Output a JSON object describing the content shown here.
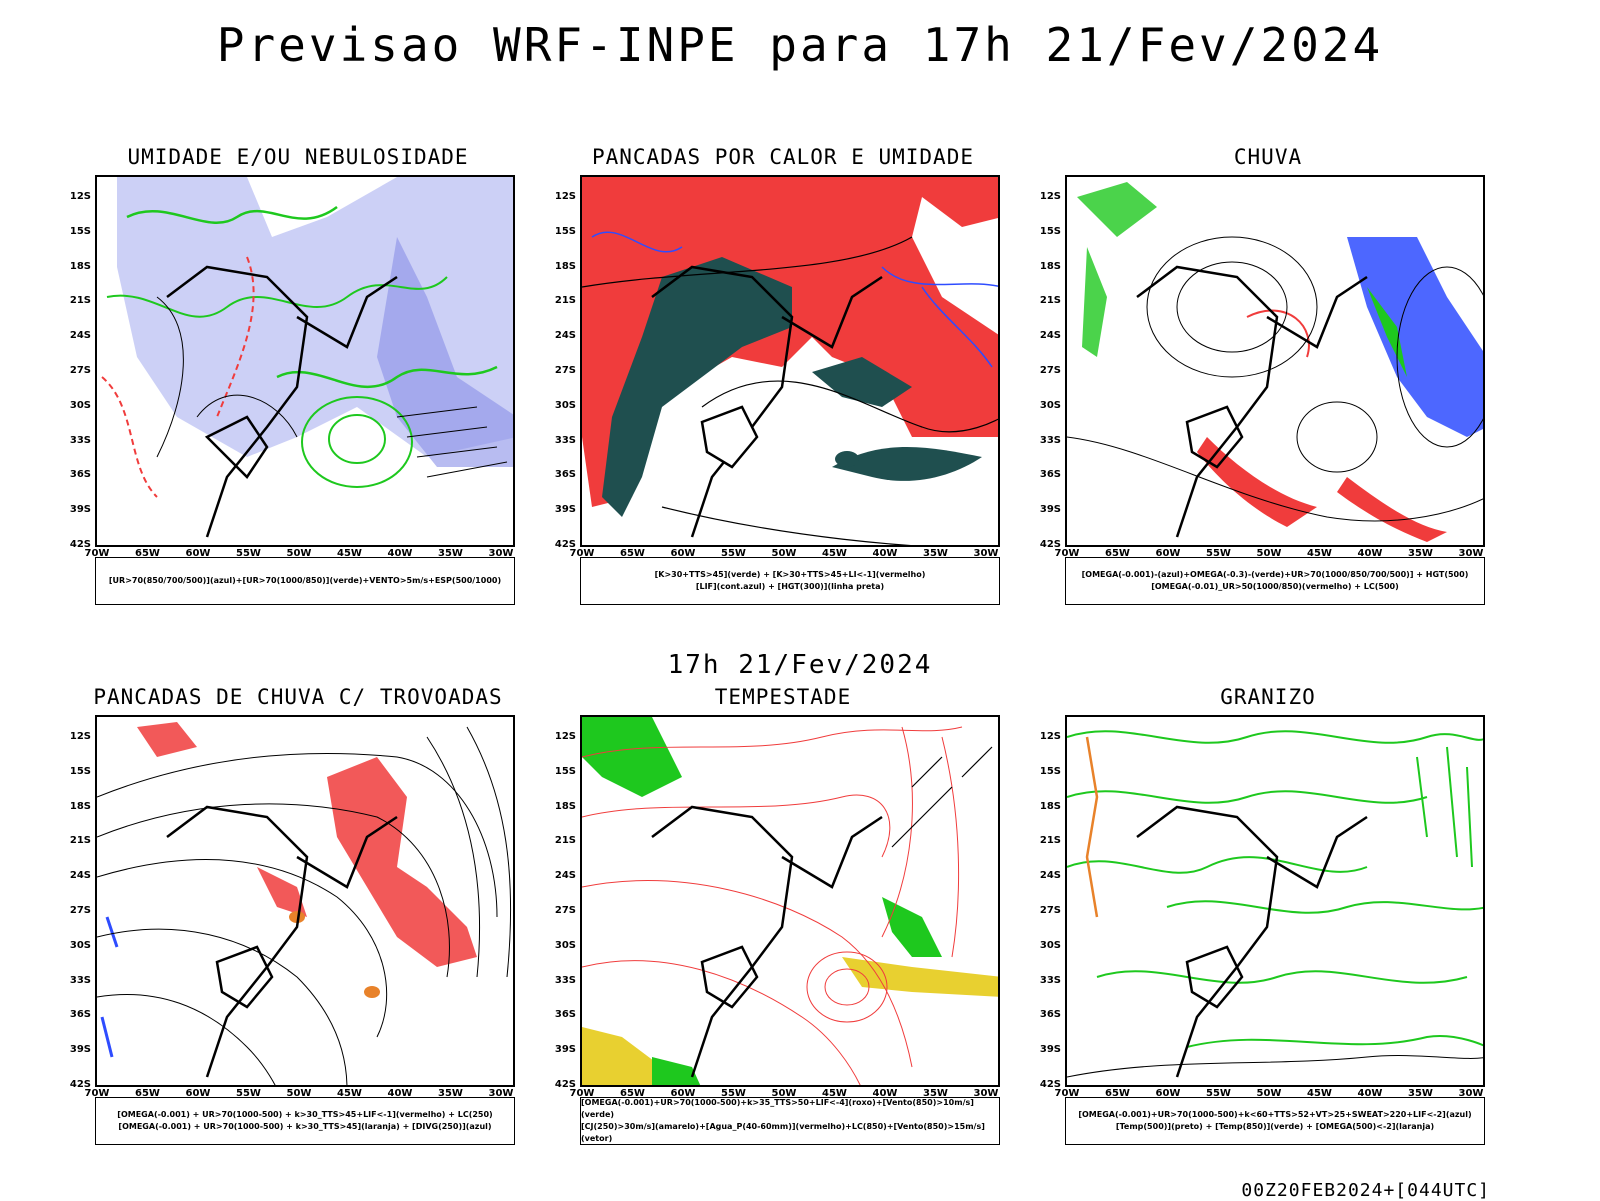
{
  "title": "Previsao WRF-INPE  para 17h 21/Fev/2024",
  "mid_date": "17h 21/Fev/2024",
  "run_info": "00Z20FEB2024+[044UTC]",
  "lat_labels": [
    "12S",
    "15S",
    "18S",
    "21S",
    "24S",
    "27S",
    "30S",
    "33S",
    "36S",
    "39S",
    "42S"
  ],
  "lon_labels": [
    "70W",
    "65W",
    "60W",
    "55W",
    "50W",
    "45W",
    "40W",
    "35W",
    "30W"
  ],
  "colors": {
    "blue": "#2e4cff",
    "green": "#1ec81e",
    "red": "#f03c3c",
    "lavender": "#aab0f0",
    "teal": "#1f4f4f",
    "yellow": "#e8d030",
    "orange": "#e8822a"
  },
  "panels": [
    {
      "title": "UMIDADE E/OU NEBULOSIDADE",
      "legend": [
        "[UR>70(850/700/500)](azul)+[UR>70(1000/850)](verde)+VENTO>5m/s+ESP(500/1000)"
      ]
    },
    {
      "title": "PANCADAS POR CALOR E UMIDADE",
      "legend": [
        "[K>30+TTS>45](verde) + [K>30+TTS>45+LI<-1](vermelho)",
        "[LIF](cont.azul) + [HGT(300)](linha preta)"
      ]
    },
    {
      "title": "CHUVA",
      "legend": [
        "[OMEGA(-0.001)-(azul)+OMEGA(-0.3)-(verde)+UR>70(1000/850/700/500)] + HGT(500)",
        "[OMEGA(-0.01)_UR>50(1000/850)(vermelho) + LC(500)"
      ]
    },
    {
      "title": "PANCADAS DE CHUVA C/ TROVOADAS",
      "legend": [
        "[OMEGA(-0.001) + UR>70(1000-500) + k>30_TTS>45+LIF<-1](vermelho) + LC(250)",
        "[OMEGA(-0.001) + UR>70(1000-500) + k>30_TTS>45](laranja) + [DIVG(250)](azul)"
      ]
    },
    {
      "title": "TEMPESTADE",
      "legend": [
        "[OMEGA(-0.001)+UR>70(1000-500)+k>35_TTS>50+LIF<-4](roxo)+[Vento(850)>10m/s](verde)",
        "[CJ(250)>30m/s](amarelo)+[Agua_P(40-60mm)](vermelho)+LC(850)+[Vento(850)>15m/s](vetor)"
      ]
    },
    {
      "title": "GRANIZO",
      "legend": [
        "[OMEGA(-0.001)+UR>70(1000-500)+k<60+TTS>52+VT>25+SWEAT>220+LIF<-2](azul)",
        "[Temp(500)](preto) + [Temp(850)](verde) + [OMEGA(500)<-2](laranja)"
      ]
    }
  ]
}
